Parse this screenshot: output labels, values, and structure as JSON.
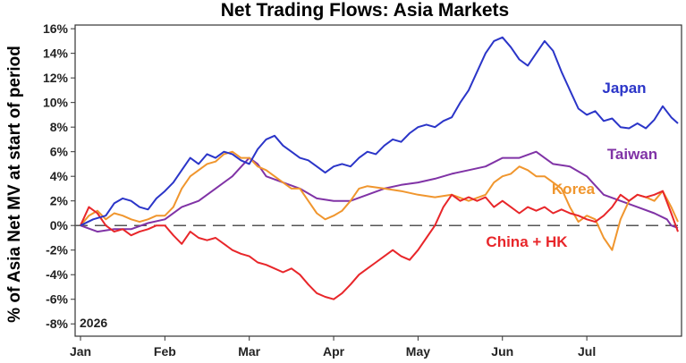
{
  "chart_data": {
    "type": "line",
    "title": "Net Trading Flows: Asia Markets",
    "ylabel": "% of Asia Net MV at start of period",
    "xlabel": "",
    "year_label": "2026",
    "x_ticks": [
      "Jan",
      "Feb",
      "Mar",
      "Apr",
      "May",
      "Jun",
      "Jul"
    ],
    "y_ticks": [
      "-8%",
      "-6%",
      "-4%",
      "-2%",
      "0%",
      "2%",
      "4%",
      "6%",
      "8%",
      "10%",
      "12%",
      "14%",
      "16%"
    ],
    "ylim": [
      -9,
      16.3
    ],
    "grid": false,
    "zero_line": "dashed",
    "series": [
      {
        "name": "Japan",
        "color": "#2b35c8",
        "points": [
          [
            0,
            0
          ],
          [
            0.15,
            0.5
          ],
          [
            0.3,
            0.8
          ],
          [
            0.4,
            1.8
          ],
          [
            0.5,
            2.2
          ],
          [
            0.6,
            2.0
          ],
          [
            0.7,
            1.5
          ],
          [
            0.8,
            1.3
          ],
          [
            0.9,
            2.2
          ],
          [
            1.0,
            2.8
          ],
          [
            1.1,
            3.5
          ],
          [
            1.2,
            4.5
          ],
          [
            1.3,
            5.5
          ],
          [
            1.4,
            5.0
          ],
          [
            1.5,
            5.8
          ],
          [
            1.6,
            5.5
          ],
          [
            1.7,
            6.0
          ],
          [
            1.8,
            5.8
          ],
          [
            1.9,
            5.3
          ],
          [
            2.0,
            5.0
          ],
          [
            2.1,
            6.2
          ],
          [
            2.2,
            7.0
          ],
          [
            2.3,
            7.3
          ],
          [
            2.4,
            6.5
          ],
          [
            2.5,
            6.0
          ],
          [
            2.6,
            5.5
          ],
          [
            2.7,
            5.3
          ],
          [
            2.8,
            4.8
          ],
          [
            2.9,
            4.3
          ],
          [
            3.0,
            4.8
          ],
          [
            3.1,
            5.0
          ],
          [
            3.2,
            4.8
          ],
          [
            3.3,
            5.5
          ],
          [
            3.4,
            6.0
          ],
          [
            3.5,
            5.8
          ],
          [
            3.6,
            6.5
          ],
          [
            3.7,
            7.0
          ],
          [
            3.8,
            6.8
          ],
          [
            3.9,
            7.5
          ],
          [
            4.0,
            8.0
          ],
          [
            4.1,
            8.2
          ],
          [
            4.2,
            8.0
          ],
          [
            4.3,
            8.5
          ],
          [
            4.4,
            8.8
          ],
          [
            4.5,
            10.0
          ],
          [
            4.6,
            11.0
          ],
          [
            4.7,
            12.5
          ],
          [
            4.8,
            14.0
          ],
          [
            4.9,
            15.0
          ],
          [
            5.0,
            15.3
          ],
          [
            5.1,
            14.5
          ],
          [
            5.2,
            13.5
          ],
          [
            5.3,
            13.0
          ],
          [
            5.4,
            14.0
          ],
          [
            5.5,
            15.0
          ],
          [
            5.6,
            14.2
          ],
          [
            5.7,
            12.5
          ],
          [
            5.8,
            11.0
          ],
          [
            5.9,
            9.5
          ],
          [
            6.0,
            9.0
          ],
          [
            6.1,
            9.3
          ],
          [
            6.2,
            8.5
          ],
          [
            6.3,
            8.7
          ],
          [
            6.4,
            8.0
          ],
          [
            6.5,
            7.9
          ],
          [
            6.6,
            8.3
          ],
          [
            6.7,
            7.9
          ],
          [
            6.8,
            8.6
          ],
          [
            6.9,
            9.7
          ],
          [
            7.0,
            8.8
          ],
          [
            7.08,
            8.3
          ]
        ]
      },
      {
        "name": "Taiwan",
        "color": "#8033a6",
        "points": [
          [
            0,
            0
          ],
          [
            0.2,
            -0.5
          ],
          [
            0.4,
            -0.3
          ],
          [
            0.6,
            -0.3
          ],
          [
            0.8,
            0.2
          ],
          [
            1.0,
            0.5
          ],
          [
            1.2,
            1.5
          ],
          [
            1.4,
            2.0
          ],
          [
            1.6,
            3.0
          ],
          [
            1.8,
            4.0
          ],
          [
            2.0,
            5.5
          ],
          [
            2.1,
            5.0
          ],
          [
            2.2,
            4.0
          ],
          [
            2.4,
            3.5
          ],
          [
            2.6,
            3.0
          ],
          [
            2.8,
            2.2
          ],
          [
            3.0,
            2.0
          ],
          [
            3.2,
            2.0
          ],
          [
            3.4,
            2.5
          ],
          [
            3.6,
            3.0
          ],
          [
            3.8,
            3.3
          ],
          [
            4.0,
            3.5
          ],
          [
            4.2,
            3.8
          ],
          [
            4.4,
            4.2
          ],
          [
            4.6,
            4.5
          ],
          [
            4.8,
            4.8
          ],
          [
            5.0,
            5.5
          ],
          [
            5.2,
            5.5
          ],
          [
            5.4,
            6.0
          ],
          [
            5.5,
            5.5
          ],
          [
            5.6,
            5.0
          ],
          [
            5.8,
            4.8
          ],
          [
            6.0,
            4.0
          ],
          [
            6.2,
            2.5
          ],
          [
            6.4,
            2.0
          ],
          [
            6.6,
            1.5
          ],
          [
            6.8,
            1.0
          ],
          [
            6.95,
            0.5
          ],
          [
            7.0,
            0.0
          ],
          [
            7.08,
            -0.2
          ]
        ]
      },
      {
        "name": "Korea",
        "color": "#f0962e",
        "points": [
          [
            0,
            0
          ],
          [
            0.1,
            0.8
          ],
          [
            0.2,
            1.2
          ],
          [
            0.3,
            0.5
          ],
          [
            0.4,
            1.0
          ],
          [
            0.5,
            0.8
          ],
          [
            0.6,
            0.5
          ],
          [
            0.7,
            0.3
          ],
          [
            0.8,
            0.5
          ],
          [
            0.9,
            0.8
          ],
          [
            1.0,
            0.8
          ],
          [
            1.1,
            1.5
          ],
          [
            1.2,
            3.0
          ],
          [
            1.3,
            4.0
          ],
          [
            1.4,
            4.5
          ],
          [
            1.5,
            5.0
          ],
          [
            1.6,
            5.2
          ],
          [
            1.7,
            5.8
          ],
          [
            1.8,
            6.0
          ],
          [
            1.9,
            5.5
          ],
          [
            2.0,
            5.5
          ],
          [
            2.1,
            4.8
          ],
          [
            2.2,
            4.5
          ],
          [
            2.3,
            4.0
          ],
          [
            2.4,
            3.5
          ],
          [
            2.5,
            3.0
          ],
          [
            2.6,
            3.0
          ],
          [
            2.7,
            2.0
          ],
          [
            2.8,
            1.0
          ],
          [
            2.9,
            0.5
          ],
          [
            3.0,
            0.8
          ],
          [
            3.1,
            1.2
          ],
          [
            3.2,
            2.0
          ],
          [
            3.3,
            3.0
          ],
          [
            3.4,
            3.2
          ],
          [
            3.6,
            3.0
          ],
          [
            3.8,
            2.8
          ],
          [
            4.0,
            2.5
          ],
          [
            4.2,
            2.3
          ],
          [
            4.4,
            2.5
          ],
          [
            4.6,
            2.0
          ],
          [
            4.8,
            2.5
          ],
          [
            4.9,
            3.5
          ],
          [
            5.0,
            4.0
          ],
          [
            5.1,
            4.2
          ],
          [
            5.2,
            4.8
          ],
          [
            5.3,
            4.5
          ],
          [
            5.4,
            4.0
          ],
          [
            5.5,
            4.0
          ],
          [
            5.6,
            3.5
          ],
          [
            5.7,
            3.0
          ],
          [
            5.8,
            1.5
          ],
          [
            5.9,
            0.3
          ],
          [
            6.0,
            0.8
          ],
          [
            6.1,
            0.5
          ],
          [
            6.2,
            -1.0
          ],
          [
            6.3,
            -2.0
          ],
          [
            6.4,
            0.5
          ],
          [
            6.5,
            2.0
          ],
          [
            6.6,
            2.5
          ],
          [
            6.7,
            2.3
          ],
          [
            6.8,
            2.0
          ],
          [
            6.9,
            2.8
          ],
          [
            7.0,
            1.5
          ],
          [
            7.08,
            0.3
          ]
        ]
      },
      {
        "name": "China + HK",
        "color": "#e8262a",
        "points": [
          [
            0,
            0
          ],
          [
            0.1,
            1.5
          ],
          [
            0.2,
            1.0
          ],
          [
            0.3,
            0.0
          ],
          [
            0.4,
            -0.5
          ],
          [
            0.5,
            -0.3
          ],
          [
            0.6,
            -0.8
          ],
          [
            0.7,
            -0.5
          ],
          [
            0.8,
            -0.3
          ],
          [
            0.9,
            0.0
          ],
          [
            1.0,
            0.0
          ],
          [
            1.1,
            -0.8
          ],
          [
            1.2,
            -1.5
          ],
          [
            1.3,
            -0.5
          ],
          [
            1.4,
            -1.0
          ],
          [
            1.5,
            -1.2
          ],
          [
            1.6,
            -1.0
          ],
          [
            1.7,
            -1.5
          ],
          [
            1.8,
            -2.0
          ],
          [
            1.9,
            -2.3
          ],
          [
            2.0,
            -2.5
          ],
          [
            2.1,
            -3.0
          ],
          [
            2.2,
            -3.2
          ],
          [
            2.3,
            -3.5
          ],
          [
            2.4,
            -3.8
          ],
          [
            2.5,
            -3.5
          ],
          [
            2.6,
            -4.0
          ],
          [
            2.7,
            -4.8
          ],
          [
            2.8,
            -5.5
          ],
          [
            2.9,
            -5.8
          ],
          [
            3.0,
            -6.0
          ],
          [
            3.1,
            -5.5
          ],
          [
            3.2,
            -4.8
          ],
          [
            3.3,
            -4.0
          ],
          [
            3.4,
            -3.5
          ],
          [
            3.5,
            -3.0
          ],
          [
            3.6,
            -2.5
          ],
          [
            3.7,
            -2.0
          ],
          [
            3.8,
            -2.5
          ],
          [
            3.9,
            -2.8
          ],
          [
            4.0,
            -2.0
          ],
          [
            4.1,
            -1.0
          ],
          [
            4.2,
            0.0
          ],
          [
            4.3,
            1.5
          ],
          [
            4.4,
            2.5
          ],
          [
            4.5,
            2.0
          ],
          [
            4.6,
            2.3
          ],
          [
            4.7,
            2.0
          ],
          [
            4.8,
            2.3
          ],
          [
            4.9,
            1.5
          ],
          [
            5.0,
            2.0
          ],
          [
            5.1,
            1.5
          ],
          [
            5.2,
            1.0
          ],
          [
            5.3,
            1.5
          ],
          [
            5.4,
            1.2
          ],
          [
            5.5,
            1.5
          ],
          [
            5.6,
            1.0
          ],
          [
            5.7,
            1.3
          ],
          [
            5.8,
            1.0
          ],
          [
            5.9,
            0.8
          ],
          [
            6.0,
            0.5
          ],
          [
            6.1,
            0.3
          ],
          [
            6.2,
            0.8
          ],
          [
            6.3,
            1.5
          ],
          [
            6.4,
            2.5
          ],
          [
            6.5,
            2.0
          ],
          [
            6.6,
            2.5
          ],
          [
            6.7,
            2.3
          ],
          [
            6.8,
            2.5
          ],
          [
            6.9,
            2.8
          ],
          [
            7.0,
            1.0
          ],
          [
            7.08,
            -0.5
          ]
        ]
      }
    ]
  }
}
